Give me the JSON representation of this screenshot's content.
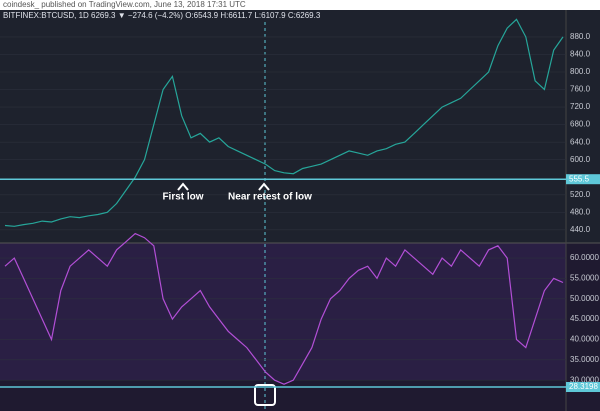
{
  "header": "coindesk_  published on TradingView.com, June 13, 2018 17:31 UTC",
  "symbol_line": "BITFINEX:BTCUSD, 1D  6269.3 ▼ −274.6 (−4.2%) O:6543.9 H:6611.7 L:6107.9 C:6269.3",
  "chart_data": [
    {
      "type": "line",
      "color": "#26a69a",
      "values": [
        450,
        448,
        452,
        455,
        460,
        458,
        465,
        470,
        468,
        472,
        475,
        480,
        500,
        530,
        560,
        600,
        680,
        760,
        790,
        700,
        650,
        660,
        640,
        650,
        630,
        620,
        610,
        600,
        590,
        575,
        570,
        568,
        580,
        585,
        590,
        600,
        610,
        620,
        615,
        610,
        620,
        625,
        635,
        640,
        660,
        680,
        700,
        720,
        730,
        740,
        760,
        780,
        800,
        860,
        900,
        920,
        880,
        780,
        760,
        850,
        880
      ],
      "ylim": [
        410,
        914
      ],
      "yticks": [
        {
          "value": 440,
          "label": "440.0"
        },
        {
          "value": 480,
          "label": "480.0"
        },
        {
          "value": 520,
          "label": "520.0"
        },
        {
          "value": 600,
          "label": "600.0"
        },
        {
          "value": 640,
          "label": "640.0"
        },
        {
          "value": 680,
          "label": "680.0"
        },
        {
          "value": 720,
          "label": "720.0"
        },
        {
          "value": 760,
          "label": "760.0"
        },
        {
          "value": 800,
          "label": "800.0"
        },
        {
          "value": 840,
          "label": "840.0"
        },
        {
          "value": 880,
          "label": "880.0"
        }
      ],
      "hline": {
        "value": 555.5,
        "label": "555.5"
      },
      "annotations": [
        "First low",
        "Near retest of low"
      ]
    },
    {
      "type": "line",
      "color": "#b24fd6",
      "values": [
        58,
        60,
        55,
        50,
        45,
        40,
        52,
        58,
        60,
        62,
        60,
        58,
        62,
        64,
        66,
        65,
        63,
        50,
        45,
        48,
        50,
        52,
        48,
        45,
        42,
        40,
        38,
        35,
        32,
        30,
        29,
        30,
        34,
        38,
        45,
        50,
        52,
        55,
        57,
        58,
        55,
        60,
        58,
        62,
        60,
        58,
        56,
        60,
        58,
        62,
        60,
        58,
        62,
        63,
        60,
        40,
        38,
        45,
        52,
        55,
        54
      ],
      "ylim": [
        23.9,
        63.7
      ],
      "yticks": [
        {
          "value": 30,
          "label": "30.0000"
        },
        {
          "value": 35,
          "label": "35.0000"
        },
        {
          "value": 40,
          "label": "40.0000"
        },
        {
          "value": 45,
          "label": "45.0000"
        },
        {
          "value": 50,
          "label": "50.0000"
        },
        {
          "value": 55,
          "label": "55.0000"
        },
        {
          "value": 60,
          "label": "60.0000"
        }
      ],
      "hline": {
        "value": 28.3198,
        "label": "28.3198"
      }
    }
  ]
}
